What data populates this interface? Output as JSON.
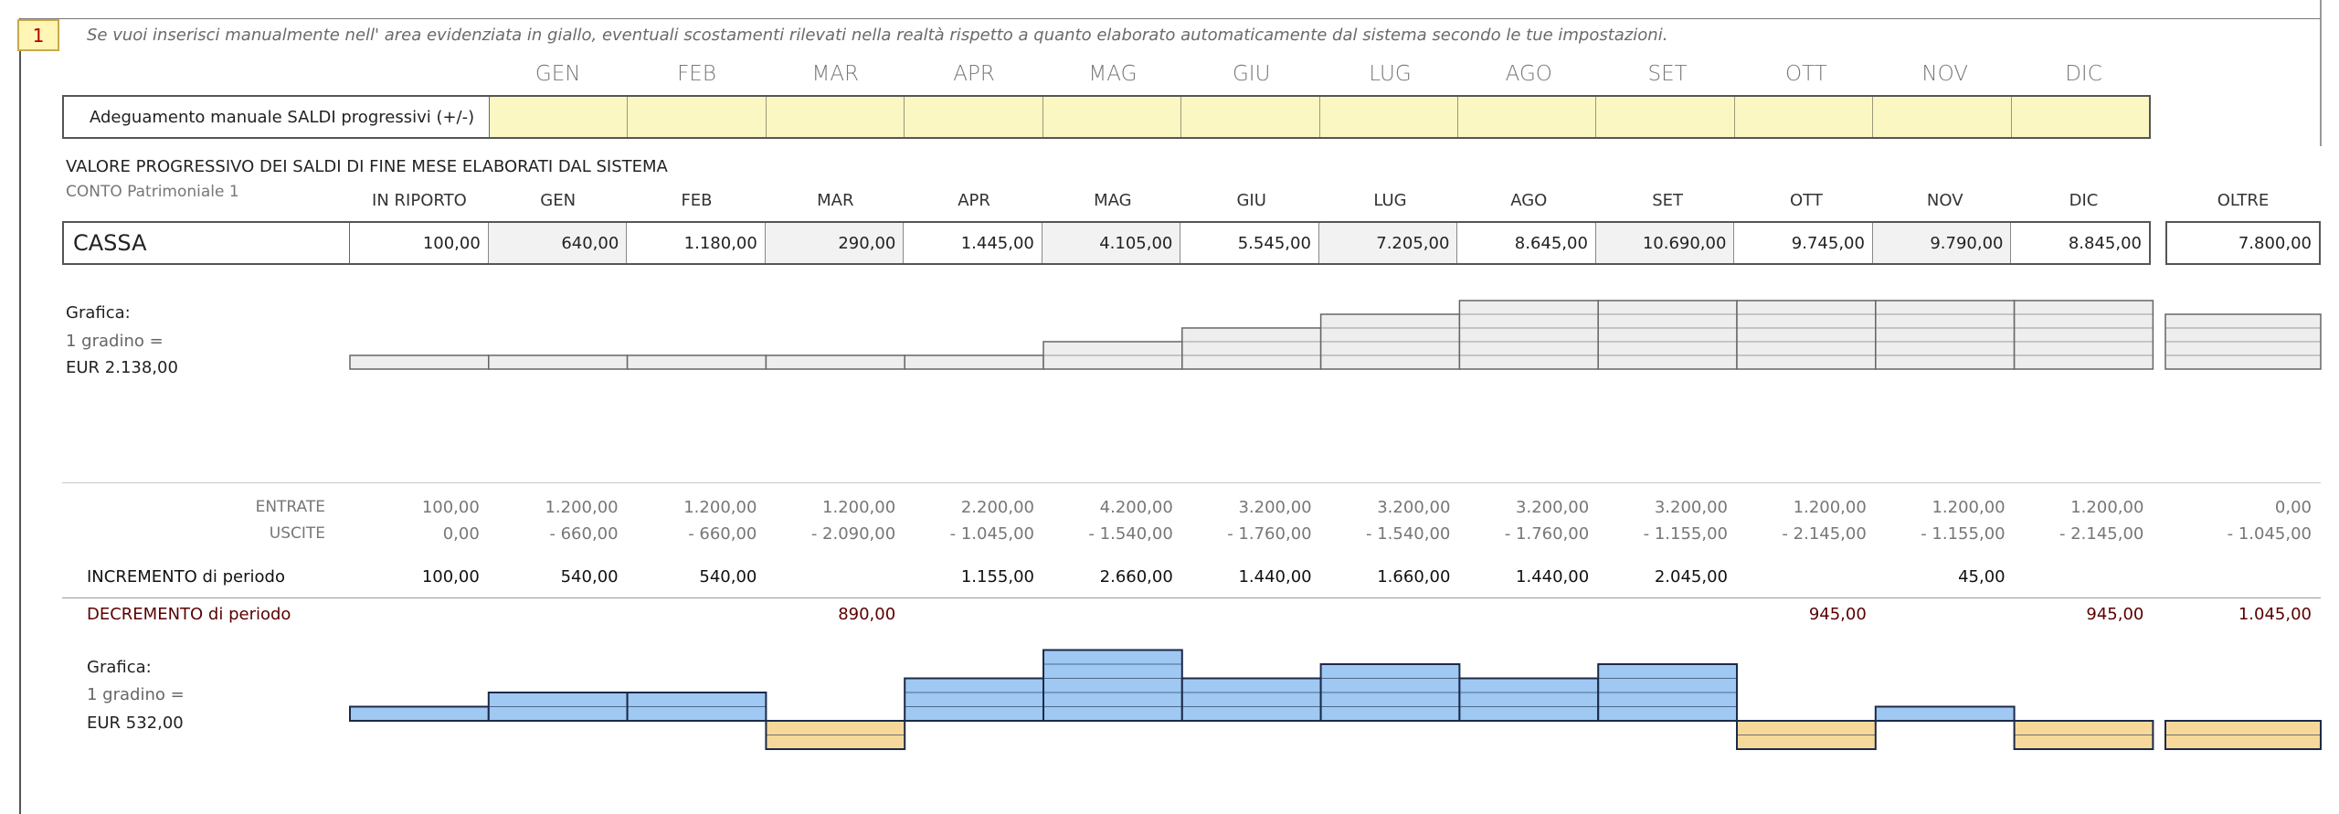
{
  "badge_number": "1",
  "note": "Se vuoi inserisci manualmente nell' area evidenziata in giallo, eventuali scostamenti rilevati nella realtà rispetto a quanto elaborato automaticamente dal sistema secondo le tue impostazioni.",
  "months": [
    "GEN",
    "FEB",
    "MAR",
    "APR",
    "MAG",
    "GIU",
    "LUG",
    "AGO",
    "SET",
    "OTT",
    "NOV",
    "DIC"
  ],
  "manual_row_label": "Adeguamento manuale SALDI progressivi (+/-)",
  "section_title": "VALORE PROGRESSIVO DEI SALDI DI FINE MESE ELABORATI DAL SISTEMA",
  "section_sub": "CONTO Patrimoniale 1",
  "header_in_riporto": "IN RIPORTO",
  "header_oltre": "OLTRE",
  "cassa": {
    "label": "CASSA",
    "in_riporto": "100,00",
    "months": [
      "640,00",
      "1.180,00",
      "290,00",
      "1.445,00",
      "4.105,00",
      "5.545,00",
      "7.205,00",
      "8.645,00",
      "10.690,00",
      "9.745,00",
      "9.790,00",
      "8.845,00"
    ],
    "oltre": "7.800,00"
  },
  "graph1": {
    "label": "Grafica:",
    "step_label": "1 gradino =",
    "step_value": "EUR 2.138,00",
    "steps": [
      1,
      1,
      1,
      1,
      1,
      2,
      3,
      4,
      5,
      5,
      5,
      5,
      5
    ],
    "oltre_steps": 4,
    "fill_color": "#eeeeee",
    "line_color": "#666666"
  },
  "flows": {
    "entrate_label": "ENTRATE",
    "uscite_label": "USCITE",
    "entrate": [
      "100,00",
      "1.200,00",
      "1.200,00",
      "1.200,00",
      "2.200,00",
      "4.200,00",
      "3.200,00",
      "3.200,00",
      "3.200,00",
      "3.200,00",
      "1.200,00",
      "1.200,00",
      "1.200,00",
      "0,00"
    ],
    "uscite": [
      "0,00",
      "- 660,00",
      "- 660,00",
      "- 2.090,00",
      "- 1.045,00",
      "- 1.540,00",
      "- 1.760,00",
      "- 1.540,00",
      "- 1.760,00",
      "- 1.155,00",
      "- 2.145,00",
      "- 1.155,00",
      "- 2.145,00",
      "- 1.045,00"
    ],
    "incremento_label": "INCREMENTO di periodo",
    "incremento": [
      "100,00",
      "540,00",
      "540,00",
      "",
      "1.155,00",
      "2.660,00",
      "1.440,00",
      "1.660,00",
      "1.440,00",
      "2.045,00",
      "",
      "45,00",
      "",
      ""
    ],
    "decremento_label": "DECREMENTO di periodo",
    "decremento": [
      "",
      "",
      "",
      "890,00",
      "",
      "",
      "",
      "",
      "",
      "",
      "945,00",
      "",
      "945,00",
      "1.045,00"
    ]
  },
  "graph2": {
    "label": "Grafica:",
    "step_label": "1 gradino =",
    "step_value": "EUR 532,00",
    "steps": [
      1,
      2,
      2,
      -2,
      3,
      5,
      3,
      4,
      3,
      4,
      -2,
      1,
      -2
    ],
    "oltre_steps": -2,
    "pos_color": "#9fc8f2",
    "neg_color": "#f6d99a",
    "line_color": "#1b2a4a"
  }
}
